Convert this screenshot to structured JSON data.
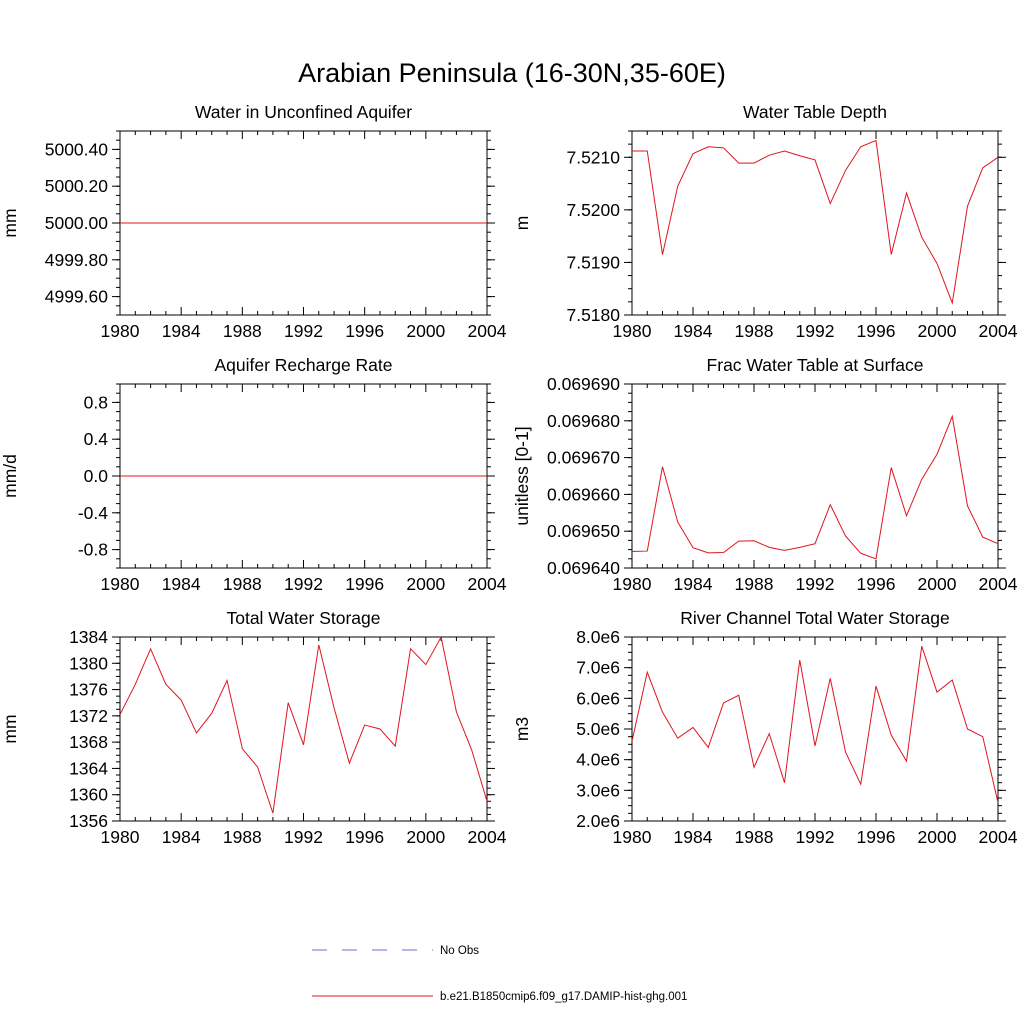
{
  "title": "Arabian Peninsula (16-30N,35-60E)",
  "legend": {
    "placement": "bottom-center",
    "entries": [
      {
        "label": "No Obs",
        "color": "#6b6bd6",
        "style": "dashed"
      },
      {
        "label": "b.e21.B1850cmip6.f09_g17.DAMIP-hist-ghg.001",
        "color": "#e0141e",
        "style": "solid"
      }
    ]
  },
  "chart_data": [
    {
      "type": "line",
      "title": "Water in Unconfined Aquifer",
      "ylabel": "mm",
      "xlim": [
        1980,
        2004
      ],
      "ylim": [
        4999.5,
        5000.5
      ],
      "x_ticks": [
        1980,
        1984,
        1988,
        1992,
        1996,
        2000,
        2004
      ],
      "y_ticks": [
        4999.6,
        4999.8,
        5000.0,
        5000.2,
        5000.4
      ],
      "y_tick_labels": [
        "4999.60",
        "4999.80",
        "5000.00",
        "5000.20",
        "5000.40"
      ],
      "series": [
        {
          "color": "#e0141e",
          "x": [
            1980,
            2004
          ],
          "y": [
            5000.0,
            5000.0
          ]
        }
      ]
    },
    {
      "type": "line",
      "title": "Water Table Depth",
      "ylabel": "m",
      "xlim": [
        1980,
        2004
      ],
      "ylim": [
        7.518,
        7.5215
      ],
      "x_ticks": [
        1980,
        1984,
        1988,
        1992,
        1996,
        2000,
        2004
      ],
      "y_ticks": [
        7.518,
        7.519,
        7.52,
        7.521
      ],
      "y_tick_labels": [
        "7.5180",
        "7.5190",
        "7.5200",
        "7.5210"
      ],
      "series": [
        {
          "color": "#e0141e",
          "x": [
            1980,
            1981,
            1982,
            1983,
            1984,
            1985,
            1986,
            1987,
            1988,
            1989,
            1990,
            1991,
            1992,
            1993,
            1994,
            1995,
            1996,
            1997,
            1998,
            1999,
            2000,
            2001,
            2002,
            2003,
            2004
          ],
          "y": [
            7.52112,
            7.52112,
            7.51915,
            7.52045,
            7.52107,
            7.5212,
            7.52118,
            7.52089,
            7.52089,
            7.52104,
            7.52112,
            7.52103,
            7.52095,
            7.52012,
            7.52075,
            7.5212,
            7.52132,
            7.51915,
            7.52032,
            7.51948,
            7.51898,
            7.51823,
            7.52007,
            7.5208,
            7.521
          ]
        }
      ]
    },
    {
      "type": "line",
      "title": "Aquifer Recharge Rate",
      "ylabel": "mm/d",
      "xlim": [
        1980,
        2004
      ],
      "ylim": [
        -1.0,
        1.0
      ],
      "x_ticks": [
        1980,
        1984,
        1988,
        1992,
        1996,
        2000,
        2004
      ],
      "y_ticks": [
        -0.8,
        -0.4,
        0.0,
        0.4,
        0.8
      ],
      "y_tick_labels": [
        "-0.8",
        "-0.4",
        "0.0",
        "0.4",
        "0.8"
      ],
      "series": [
        {
          "color": "#e0141e",
          "x": [
            1980,
            2004
          ],
          "y": [
            0.0,
            0.0
          ]
        }
      ]
    },
    {
      "type": "line",
      "title": "Frac Water Table at Surface",
      "ylabel": "unitless [0-1]",
      "xlim": [
        1980,
        2004
      ],
      "ylim": [
        0.06964,
        0.06969
      ],
      "x_ticks": [
        1980,
        1984,
        1988,
        1992,
        1996,
        2000,
        2004
      ],
      "y_ticks": [
        0.06964,
        0.06965,
        0.06966,
        0.06967,
        0.06968,
        0.06969
      ],
      "y_tick_labels": [
        "0.069640",
        "0.069650",
        "0.069660",
        "0.069670",
        "0.069680",
        "0.069690"
      ],
      "series": [
        {
          "color": "#e0141e",
          "x": [
            1980,
            1981,
            1982,
            1983,
            1984,
            1985,
            1986,
            1987,
            1988,
            1989,
            1990,
            1991,
            1992,
            1993,
            1994,
            1995,
            1996,
            1997,
            1998,
            1999,
            2000,
            2001,
            2002,
            2003,
            2004
          ],
          "y": [
            0.0696445,
            0.0696446,
            0.0696675,
            0.0696525,
            0.0696455,
            0.0696441,
            0.0696442,
            0.0696473,
            0.0696474,
            0.0696456,
            0.0696448,
            0.0696456,
            0.0696466,
            0.0696572,
            0.0696487,
            0.069644,
            0.0696425,
            0.0696673,
            0.0696542,
            0.0696641,
            0.0696709,
            0.0696812,
            0.0696569,
            0.0696484,
            0.0696466
          ]
        }
      ]
    },
    {
      "type": "line",
      "title": "Total Water Storage",
      "ylabel": "mm",
      "xlim": [
        1980,
        2004
      ],
      "ylim": [
        1356,
        1384
      ],
      "x_ticks": [
        1980,
        1984,
        1988,
        1992,
        1996,
        2000,
        2004
      ],
      "y_ticks": [
        1356,
        1360,
        1364,
        1368,
        1372,
        1376,
        1380,
        1384
      ],
      "y_tick_labels": [
        "1356",
        "1360",
        "1364",
        "1368",
        "1372",
        "1376",
        "1380",
        "1384"
      ],
      "series": [
        {
          "color": "#e0141e",
          "x": [
            1980,
            1981,
            1982,
            1983,
            1984,
            1985,
            1986,
            1987,
            1988,
            1989,
            1990,
            1991,
            1992,
            1993,
            1994,
            1995,
            1996,
            1997,
            1998,
            1999,
            2000,
            2001,
            2002,
            2003,
            2004
          ],
          "y": [
            1372.2,
            1376.8,
            1382.2,
            1376.8,
            1374.4,
            1369.4,
            1372.4,
            1377.4,
            1367.0,
            1364.2,
            1357.2,
            1374.0,
            1367.6,
            1382.8,
            1373.2,
            1364.8,
            1370.6,
            1370.0,
            1367.4,
            1382.2,
            1379.8,
            1384.0,
            1372.6,
            1366.8,
            1359.0
          ]
        }
      ]
    },
    {
      "type": "line",
      "title": "River Channel Total Water Storage",
      "ylabel": "m3",
      "xlim": [
        1980,
        2004
      ],
      "ylim": [
        2000000,
        8000000
      ],
      "x_ticks": [
        1980,
        1984,
        1988,
        1992,
        1996,
        2000,
        2004
      ],
      "y_ticks": [
        2000000,
        3000000,
        4000000,
        5000000,
        6000000,
        7000000,
        8000000
      ],
      "y_tick_labels": [
        "2.0e6",
        "3.0e6",
        "4.0e6",
        "5.0e6",
        "6.0e6",
        "7.0e6",
        "8.0e6"
      ],
      "series": [
        {
          "color": "#e0141e",
          "x": [
            1980,
            1981,
            1982,
            1983,
            1984,
            1985,
            1986,
            1987,
            1988,
            1989,
            1990,
            1991,
            1992,
            1993,
            1994,
            1995,
            1996,
            1997,
            1998,
            1999,
            2000,
            2001,
            2002,
            2003,
            2004
          ],
          "y": [
            4600000,
            6850000,
            5550000,
            4700000,
            5050000,
            4400000,
            5850000,
            6100000,
            3750000,
            4850000,
            3250000,
            7250000,
            4450000,
            6650000,
            4250000,
            3200000,
            6400000,
            4800000,
            3950000,
            7700000,
            6200000,
            6600000,
            5000000,
            4750000,
            2600000
          ]
        }
      ]
    }
  ]
}
